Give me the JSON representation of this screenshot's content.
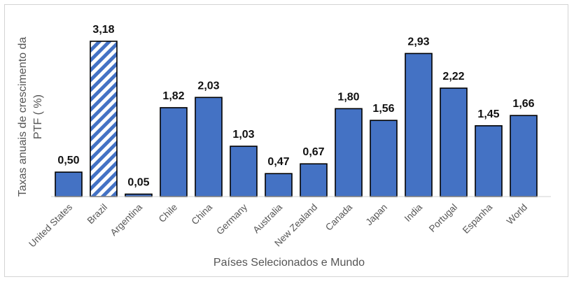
{
  "chart_data": {
    "type": "bar",
    "categories": [
      "United States",
      "Brazil",
      "Argentina",
      "Chile",
      "China",
      "Germany",
      "Australia",
      "New Zealand",
      "Canada",
      "Japan",
      "India",
      "Portugal",
      "Espanha",
      "World"
    ],
    "values": [
      0.5,
      3.18,
      0.05,
      1.82,
      2.03,
      1.03,
      0.47,
      0.67,
      1.8,
      1.56,
      2.93,
      2.22,
      1.45,
      1.66
    ],
    "data_labels": [
      "0,50",
      "3,18",
      "0,05",
      "1,82",
      "2,03",
      "1,03",
      "0,47",
      "0,67",
      "1,80",
      "1,56",
      "2,93",
      "2,22",
      "1,45",
      "1,66"
    ],
    "highlighted_category": "Brazil",
    "highlight_pattern": "diagonal-stripes",
    "xlabel": "Países Selecionados e Mundo",
    "ylabel_lines": [
      "Taxas anuais de crescimento da",
      "PTF ( %)"
    ],
    "ylim": [
      0,
      3.18
    ],
    "grid": false,
    "legend": "none",
    "colors": {
      "bar": "#4472c4",
      "bar_edge": "#000000",
      "pattern_bg": "#ffffff"
    }
  }
}
